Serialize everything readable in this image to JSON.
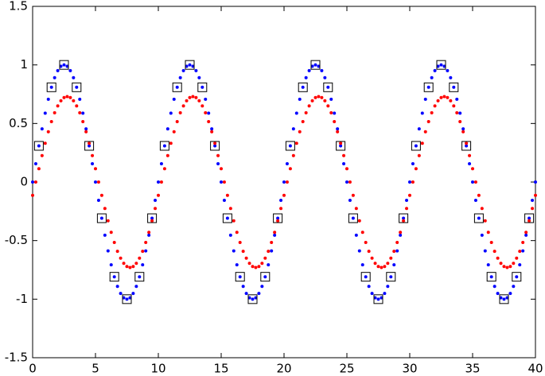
{
  "chart_data": {
    "type": "scatter",
    "xlim": [
      0,
      40
    ],
    "ylim": [
      -1.5,
      1.5
    ],
    "xticks": [
      0,
      5,
      10,
      15,
      20,
      25,
      30,
      35,
      40
    ],
    "yticks": [
      -1.5,
      -1,
      -0.5,
      0,
      0.5,
      1,
      1.5
    ],
    "grid": false,
    "series": [
      {
        "color": "#0000ff",
        "marker": "dot",
        "x": [
          0,
          0.25,
          0.5,
          0.75,
          1,
          1.25,
          1.5,
          1.75,
          2,
          2.25,
          2.5,
          2.75,
          3,
          3.25,
          3.5,
          3.75,
          4,
          4.25,
          4.5,
          4.75,
          5,
          5.25,
          5.5,
          5.75,
          6,
          6.25,
          6.5,
          6.75,
          7,
          7.25,
          7.5,
          7.75,
          8,
          8.25,
          8.5,
          8.75,
          9,
          9.25,
          9.5,
          9.75,
          10,
          10.25,
          10.5,
          10.75,
          11,
          11.25,
          11.5,
          11.75,
          12,
          12.25,
          12.5,
          12.75,
          13,
          13.25,
          13.5,
          13.75,
          14,
          14.25,
          14.5,
          14.75,
          15,
          15.25,
          15.5,
          15.75,
          16,
          16.25,
          16.5,
          16.75,
          17,
          17.25,
          17.5,
          17.75,
          18,
          18.25,
          18.5,
          18.75,
          19,
          19.25,
          19.5,
          19.75,
          20,
          20.25,
          20.5,
          20.75,
          21,
          21.25,
          21.5,
          21.75,
          22,
          22.25,
          22.5,
          22.75,
          23,
          23.25,
          23.5,
          23.75,
          24,
          24.25,
          24.5,
          24.75,
          25,
          25.25,
          25.5,
          25.75,
          26,
          26.25,
          26.5,
          26.75,
          27,
          27.25,
          27.5,
          27.75,
          28,
          28.25,
          28.5,
          28.75,
          29,
          29.25,
          29.5,
          29.75,
          30,
          30.25,
          30.5,
          30.75,
          31,
          31.25,
          31.5,
          31.75,
          32,
          32.25,
          32.5,
          32.75,
          33,
          33.25,
          33.5,
          33.75,
          34,
          34.25,
          34.5,
          34.75,
          35,
          35.25,
          35.5,
          35.75,
          36,
          36.25,
          36.5,
          36.75,
          37,
          37.25,
          37.5,
          37.75,
          38,
          38.25,
          38.5,
          38.75,
          39,
          39.25,
          39.5,
          39.75,
          40
        ],
        "values": [
          0,
          0.156,
          0.309,
          0.454,
          0.588,
          0.707,
          0.809,
          0.891,
          0.951,
          0.988,
          1,
          0.988,
          0.951,
          0.891,
          0.809,
          0.707,
          0.588,
          0.454,
          0.309,
          0.156,
          0,
          -0.156,
          -0.309,
          -0.454,
          -0.588,
          -0.707,
          -0.809,
          -0.891,
          -0.951,
          -0.988,
          -1,
          -0.988,
          -0.951,
          -0.891,
          -0.809,
          -0.707,
          -0.588,
          -0.454,
          -0.309,
          -0.156,
          0,
          0.156,
          0.309,
          0.454,
          0.588,
          0.707,
          0.809,
          0.891,
          0.951,
          0.988,
          1,
          0.988,
          0.951,
          0.891,
          0.809,
          0.707,
          0.588,
          0.454,
          0.309,
          0.156,
          0,
          -0.156,
          -0.309,
          -0.454,
          -0.588,
          -0.707,
          -0.809,
          -0.891,
          -0.951,
          -0.988,
          -1,
          -0.988,
          -0.951,
          -0.891,
          -0.809,
          -0.707,
          -0.588,
          -0.454,
          -0.309,
          -0.156,
          0,
          0.156,
          0.309,
          0.454,
          0.588,
          0.707,
          0.809,
          0.891,
          0.951,
          0.988,
          1,
          0.988,
          0.951,
          0.891,
          0.809,
          0.707,
          0.588,
          0.454,
          0.309,
          0.156,
          0,
          -0.156,
          -0.309,
          -0.454,
          -0.588,
          -0.707,
          -0.809,
          -0.891,
          -0.951,
          -0.988,
          -1,
          -0.988,
          -0.951,
          -0.891,
          -0.809,
          -0.707,
          -0.588,
          -0.454,
          -0.309,
          -0.156,
          0,
          0.156,
          0.309,
          0.454,
          0.588,
          0.707,
          0.809,
          0.891,
          0.951,
          0.988,
          1,
          0.988,
          0.951,
          0.891,
          0.809,
          0.707,
          0.588,
          0.454,
          0.309,
          0.156,
          0,
          -0.156,
          -0.309,
          -0.454,
          -0.588,
          -0.707,
          -0.809,
          -0.891,
          -0.951,
          -0.988,
          -1,
          -0.988,
          -0.951,
          -0.891,
          -0.809,
          -0.707,
          -0.588,
          -0.454,
          -0.309,
          -0.156,
          0
        ]
      },
      {
        "color": "#ff0000",
        "marker": "dot",
        "x": [
          0,
          0.25,
          0.5,
          0.75,
          1,
          1.25,
          1.5,
          1.75,
          2,
          2.25,
          2.5,
          2.75,
          3,
          3.25,
          3.5,
          3.75,
          4,
          4.25,
          4.5,
          4.75,
          5,
          5.25,
          5.5,
          5.75,
          6,
          6.25,
          6.5,
          6.75,
          7,
          7.25,
          7.5,
          7.75,
          8,
          8.25,
          8.5,
          8.75,
          9,
          9.25,
          9.5,
          9.75,
          10,
          10.25,
          10.5,
          10.75,
          11,
          11.25,
          11.5,
          11.75,
          12,
          12.25,
          12.5,
          12.75,
          13,
          13.25,
          13.5,
          13.75,
          14,
          14.25,
          14.5,
          14.75,
          15,
          15.25,
          15.5,
          15.75,
          16,
          16.25,
          16.5,
          16.75,
          17,
          17.25,
          17.5,
          17.75,
          18,
          18.25,
          18.5,
          18.75,
          19,
          19.25,
          19.5,
          19.75,
          20,
          20.25,
          20.5,
          20.75,
          21,
          21.25,
          21.5,
          21.75,
          22,
          22.25,
          22.5,
          22.75,
          23,
          23.25,
          23.5,
          23.75,
          24,
          24.25,
          24.5,
          24.75,
          25,
          25.25,
          25.5,
          25.75,
          26,
          26.25,
          26.5,
          26.75,
          27,
          27.25,
          27.5,
          27.75,
          28,
          28.25,
          28.5,
          28.75,
          29,
          29.25,
          29.5,
          29.75,
          30,
          30.25,
          30.5,
          30.75,
          31,
          31.25,
          31.5,
          31.75,
          32,
          32.25,
          32.5,
          32.75,
          33,
          33.25,
          33.5,
          33.75,
          34,
          34.25,
          34.5,
          34.75,
          35,
          35.25,
          35.5,
          35.75,
          36,
          36.25,
          36.5,
          36.75,
          37,
          37.25,
          37.5,
          37.75,
          38,
          38.25,
          38.5,
          38.75,
          39,
          39.25,
          39.5,
          39.75,
          40
        ],
        "values": [
          -0.114,
          0,
          0.114,
          0.226,
          0.331,
          0.429,
          0.516,
          0.591,
          0.65,
          0.694,
          0.721,
          0.73,
          0.721,
          0.694,
          0.65,
          0.591,
          0.516,
          0.429,
          0.331,
          0.226,
          0.114,
          0,
          -0.114,
          -0.226,
          -0.331,
          -0.429,
          -0.516,
          -0.591,
          -0.65,
          -0.694,
          -0.721,
          -0.73,
          -0.721,
          -0.694,
          -0.65,
          -0.591,
          -0.516,
          -0.429,
          -0.331,
          -0.226,
          -0.114,
          0,
          0.114,
          0.226,
          0.331,
          0.429,
          0.516,
          0.591,
          0.65,
          0.694,
          0.721,
          0.73,
          0.721,
          0.694,
          0.65,
          0.591,
          0.516,
          0.429,
          0.331,
          0.226,
          0.114,
          0,
          -0.114,
          -0.226,
          -0.331,
          -0.429,
          -0.516,
          -0.591,
          -0.65,
          -0.694,
          -0.721,
          -0.73,
          -0.721,
          -0.694,
          -0.65,
          -0.591,
          -0.516,
          -0.429,
          -0.331,
          -0.226,
          -0.114,
          0,
          0.114,
          0.226,
          0.331,
          0.429,
          0.516,
          0.591,
          0.65,
          0.694,
          0.721,
          0.73,
          0.721,
          0.694,
          0.65,
          0.591,
          0.516,
          0.429,
          0.331,
          0.226,
          0.114,
          0,
          -0.114,
          -0.226,
          -0.331,
          -0.429,
          -0.516,
          -0.591,
          -0.65,
          -0.694,
          -0.721,
          -0.73,
          -0.721,
          -0.694,
          -0.65,
          -0.591,
          -0.516,
          -0.429,
          -0.331,
          -0.226,
          -0.114,
          0,
          0.114,
          0.226,
          0.331,
          0.429,
          0.516,
          0.591,
          0.65,
          0.694,
          0.721,
          0.73,
          0.721,
          0.694,
          0.65,
          0.591,
          0.516,
          0.429,
          0.331,
          0.226,
          0.114,
          0,
          -0.114,
          -0.226,
          -0.331,
          -0.429,
          -0.516,
          -0.591,
          -0.65,
          -0.694,
          -0.721,
          -0.73,
          -0.721,
          -0.694,
          -0.65,
          -0.591,
          -0.516,
          -0.429,
          -0.331,
          -0.226,
          -0.114
        ]
      },
      {
        "color": "#000000",
        "marker": "square",
        "x": [
          0.5,
          1.5,
          2.5,
          3.5,
          4.5,
          5.5,
          6.5,
          7.5,
          8.5,
          9.5,
          10.5,
          11.5,
          12.5,
          13.5,
          14.5,
          15.5,
          16.5,
          17.5,
          18.5,
          19.5,
          20.5,
          21.5,
          22.5,
          23.5,
          24.5,
          25.5,
          26.5,
          27.5,
          28.5,
          29.5,
          30.5,
          31.5,
          32.5,
          33.5,
          34.5,
          35.5,
          36.5,
          37.5,
          38.5,
          39.5
        ],
        "values": [
          0.309,
          0.809,
          1,
          0.809,
          0.309,
          -0.309,
          -0.809,
          -1,
          -0.809,
          -0.309,
          0.309,
          0.809,
          1,
          0.809,
          0.309,
          -0.309,
          -0.809,
          -1,
          -0.809,
          -0.309,
          0.309,
          0.809,
          1,
          0.809,
          0.309,
          -0.309,
          -0.809,
          -1,
          -0.809,
          -0.309,
          0.309,
          0.809,
          1,
          0.809,
          0.309,
          -0.309,
          -0.809,
          -1,
          -0.809,
          -0.309
        ]
      }
    ]
  }
}
